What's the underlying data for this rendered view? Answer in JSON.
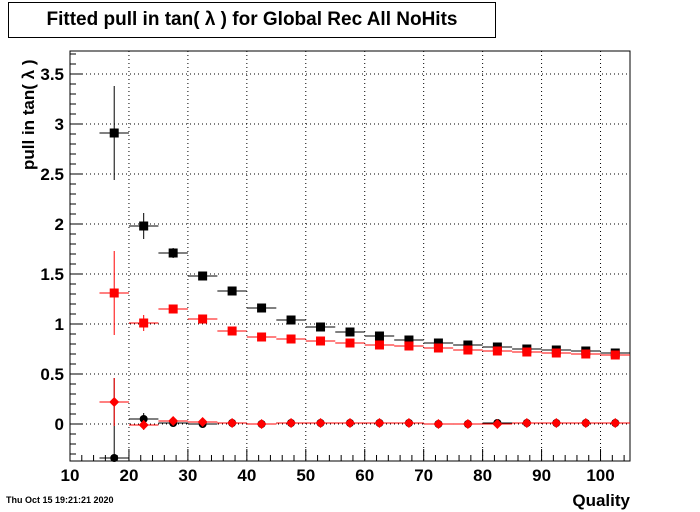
{
  "title": "Fitted pull in tan( λ ) for Global Rec All NoHits",
  "date_stamp": "Thu Oct 15 19:21:21 2020",
  "chart_data": {
    "type": "scatter",
    "title": "Fitted pull in tan( λ ) for Global Rec All NoHits",
    "xlabel": "Quality",
    "ylabel": "pull in tan( λ )",
    "xlim": [
      10,
      105
    ],
    "ylim": [
      -0.37,
      3.73
    ],
    "grid": true,
    "xticks": [
      10,
      20,
      30,
      40,
      50,
      60,
      70,
      80,
      90,
      100
    ],
    "yticks": [
      0,
      0.5,
      1,
      1.5,
      2,
      2.5,
      3,
      3.5
    ],
    "bin_half_width": 2.5,
    "series": [
      {
        "color": "#000000",
        "marker": "square",
        "x": [
          17.5,
          22.5,
          27.5,
          32.5,
          37.5,
          42.5,
          47.5,
          52.5,
          57.5,
          62.5,
          67.5,
          72.5,
          77.5,
          82.5,
          87.5,
          92.5,
          97.5,
          102.5
        ],
        "y": [
          2.91,
          1.98,
          1.71,
          1.48,
          1.33,
          1.16,
          1.04,
          0.97,
          0.92,
          0.88,
          0.84,
          0.81,
          0.79,
          0.77,
          0.75,
          0.74,
          0.73,
          0.71
        ],
        "yerr": [
          0.47,
          0.13,
          0.05,
          0.035,
          0.03,
          0.025,
          0.02,
          0.02,
          0.02,
          0.02,
          0.015,
          0.015,
          0.015,
          0.015,
          0.015,
          0.015,
          0.015,
          0.015
        ]
      },
      {
        "color": "#ff0000",
        "marker": "square",
        "x": [
          17.5,
          22.5,
          27.5,
          32.5,
          37.5,
          42.5,
          47.5,
          52.5,
          57.5,
          62.5,
          67.5,
          72.5,
          77.5,
          82.5,
          87.5,
          92.5,
          97.5,
          102.5
        ],
        "y": [
          1.31,
          1.01,
          1.15,
          1.05,
          0.93,
          0.87,
          0.85,
          0.83,
          0.81,
          0.79,
          0.78,
          0.76,
          0.74,
          0.73,
          0.72,
          0.71,
          0.7,
          0.69
        ],
        "yerr": [
          0.42,
          0.08,
          0.04,
          0.03,
          0.025,
          0.02,
          0.02,
          0.02,
          0.015,
          0.015,
          0.015,
          0.015,
          0.015,
          0.015,
          0.015,
          0.015,
          0.015,
          0.015
        ]
      },
      {
        "color": "#000000",
        "marker": "circle",
        "x": [
          17.5,
          22.5,
          27.5,
          32.5,
          37.5,
          42.5,
          47.5,
          52.5,
          57.5,
          62.5,
          67.5,
          72.5,
          77.5,
          82.5,
          87.5,
          92.5,
          97.5,
          102.5
        ],
        "y": [
          -0.34,
          0.05,
          0.01,
          0.0,
          0.01,
          0.0,
          0.01,
          0.01,
          0.01,
          0.01,
          0.01,
          0.0,
          0.0,
          0.01,
          0.01,
          0.01,
          0.01,
          0.01
        ],
        "yerr": [
          0.8,
          0.06,
          0.03,
          0.02,
          0.015,
          0.012,
          0.01,
          0.01,
          0.01,
          0.01,
          0.01,
          0.01,
          0.01,
          0.01,
          0.01,
          0.01,
          0.01,
          0.01
        ]
      },
      {
        "color": "#ff0000",
        "marker": "diamond",
        "x": [
          17.5,
          22.5,
          27.5,
          32.5,
          37.5,
          42.5,
          47.5,
          52.5,
          57.5,
          62.5,
          67.5,
          72.5,
          77.5,
          82.5,
          87.5,
          92.5,
          97.5,
          102.5
        ],
        "y": [
          0.22,
          -0.01,
          0.03,
          0.02,
          0.01,
          0.0,
          0.01,
          0.01,
          0.01,
          0.01,
          0.01,
          0.0,
          0.0,
          0.0,
          0.01,
          0.01,
          0.01,
          0.01
        ],
        "yerr": [
          0.24,
          0.05,
          0.025,
          0.02,
          0.015,
          0.012,
          0.01,
          0.01,
          0.01,
          0.01,
          0.01,
          0.01,
          0.01,
          0.01,
          0.01,
          0.01,
          0.01,
          0.01
        ]
      }
    ]
  }
}
